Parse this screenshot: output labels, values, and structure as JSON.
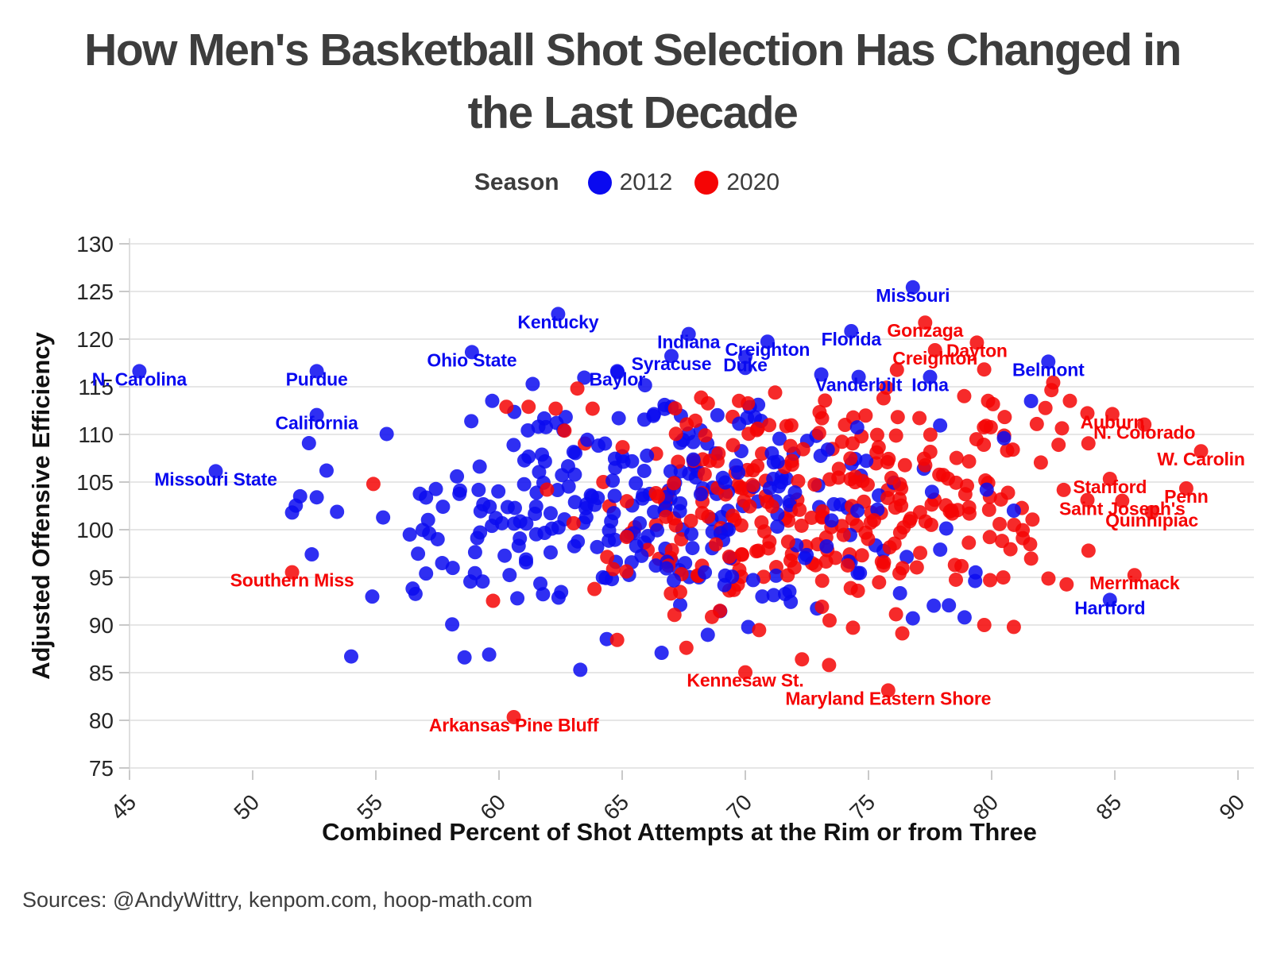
{
  "title": {
    "line1": "How Men's Basketball Shot Selection Has Changed in",
    "line2": "the Last Decade"
  },
  "legend": {
    "title": "Season",
    "items": [
      {
        "label": "2012",
        "color": "#0a0af0"
      },
      {
        "label": "2020",
        "color": "#f50505"
      }
    ]
  },
  "footer": {
    "sources": "Sources: @AndyWittry, kenpom.com, hoop-math.com"
  },
  "chart_data": {
    "type": "scatter",
    "title": "How Men's Basketball Shot Selection Has Changed in the Last Decade",
    "xlabel": "Combined Percent of Shot Attempts at the Rim or from Three",
    "ylabel": "Adjusted Offensive Efficiency",
    "xlim": [
      44.5,
      90.7
    ],
    "ylim": [
      74.75,
      130.6
    ],
    "x_ticks": [
      45,
      50,
      55,
      60,
      65,
      70,
      75,
      80,
      85,
      90
    ],
    "y_ticks": [
      75,
      80,
      85,
      90,
      95,
      100,
      105,
      110,
      115,
      120,
      125,
      130
    ],
    "grid": "horizontal-only",
    "legend_position": "top-center",
    "point_alpha": 0.85,
    "point_radius_px": 9,
    "series": [
      {
        "name": "2012",
        "color": "#0a0af0",
        "cloud": {
          "count": 300,
          "seed": 20120,
          "x_center": 66.4,
          "x_spread": 5.4,
          "y_center": 103.2,
          "y_spread": 6.3,
          "x_min": 51.5,
          "x_max": 83.5,
          "y_min": 86.3,
          "y_max": 117.2
        },
        "outlier_points": [
          [
            51.6,
            101.8
          ],
          [
            52.6,
            103.4
          ],
          [
            54.0,
            86.7
          ],
          [
            58.6,
            86.6
          ],
          [
            59.6,
            86.9
          ],
          [
            63.3,
            85.3
          ],
          [
            76.8,
            90.7
          ],
          [
            78.9,
            90.8
          ],
          [
            80.5,
            109.6
          ],
          [
            81.6,
            113.5
          ],
          [
            79.8,
            104.2
          ],
          [
            80.9,
            102.0
          ]
        ]
      },
      {
        "name": "2020",
        "color": "#f50505",
        "cloud": {
          "count": 300,
          "seed": 20200,
          "x_center": 73.4,
          "x_spread": 5.2,
          "y_center": 102.8,
          "y_spread": 6.3,
          "x_min": 55.5,
          "x_max": 84.5,
          "y_min": 87.0,
          "y_max": 117.4
        },
        "outlier_points": [
          [
            54.9,
            104.8
          ],
          [
            60.3,
            112.9
          ],
          [
            61.2,
            112.9
          ],
          [
            62.3,
            112.7
          ],
          [
            63.8,
            112.7
          ],
          [
            72.3,
            86.4
          ],
          [
            73.4,
            85.8
          ],
          [
            79.7,
            90.0
          ],
          [
            80.9,
            89.8
          ]
        ]
      }
    ],
    "labeled_points": [
      {
        "team": "N. Carolina",
        "season": "2012",
        "x": 45.4,
        "y": 115.8
      },
      {
        "team": "Purdue",
        "season": "2012",
        "x": 52.6,
        "y": 115.8
      },
      {
        "team": "California",
        "season": "2012",
        "x": 52.6,
        "y": 111.2
      },
      {
        "team": "Missouri State",
        "season": "2012",
        "x": 48.5,
        "y": 105.3
      },
      {
        "team": "Ohio State",
        "season": "2012",
        "x": 58.9,
        "y": 117.8
      },
      {
        "team": "Kentucky",
        "season": "2012",
        "x": 62.4,
        "y": 121.8
      },
      {
        "team": "Baylor",
        "season": "2012",
        "x": 64.8,
        "y": 115.8
      },
      {
        "team": "Syracuse",
        "season": "2012",
        "x": 67.0,
        "y": 117.4
      },
      {
        "team": "Indiana",
        "season": "2012",
        "x": 67.7,
        "y": 119.7
      },
      {
        "team": "Duke",
        "season": "2012",
        "x": 70.0,
        "y": 117.3
      },
      {
        "team": "Creighton",
        "season": "2012",
        "x": 70.9,
        "y": 118.9
      },
      {
        "team": "Florida",
        "season": "2012",
        "x": 74.3,
        "y": 120.0
      },
      {
        "team": "Vanderbilt",
        "season": "2012",
        "x": 74.6,
        "y": 115.2
      },
      {
        "team": "Missouri",
        "season": "2012",
        "x": 76.8,
        "y": 124.6
      },
      {
        "team": "Iona",
        "season": "2012",
        "x": 77.5,
        "y": 115.2
      },
      {
        "team": "Belmont",
        "season": "2012",
        "x": 82.3,
        "y": 116.8
      },
      {
        "team": "Hartford",
        "season": "2012",
        "x": 84.8,
        "y": 91.8
      },
      {
        "team": "Southern Miss",
        "season": "2020",
        "x": 51.6,
        "y": 94.7
      },
      {
        "team": "Gonzaga",
        "season": "2020",
        "x": 77.3,
        "y": 120.9
      },
      {
        "team": "Creighton",
        "season": "2020",
        "x": 77.7,
        "y": 118.0
      },
      {
        "team": "Dayton",
        "season": "2020",
        "x": 79.4,
        "y": 118.8
      },
      {
        "team": "Auburn",
        "season": "2020",
        "x": 84.9,
        "y": 111.3
      },
      {
        "team": "N. Colorado",
        "season": "2020",
        "x": 86.2,
        "y": 110.2
      },
      {
        "team": "W. Carolin",
        "season": "2020",
        "x": 88.5,
        "y": 107.4
      },
      {
        "team": "Stanford",
        "season": "2020",
        "x": 84.8,
        "y": 104.5
      },
      {
        "team": "Penn",
        "season": "2020",
        "x": 87.9,
        "y": 103.5
      },
      {
        "team": "Saint Joseph's",
        "season": "2020",
        "x": 85.3,
        "y": 102.2
      },
      {
        "team": "Quinnipiac",
        "season": "2020",
        "x": 86.5,
        "y": 101.0
      },
      {
        "team": "Merrimack",
        "season": "2020",
        "x": 85.8,
        "y": 94.4
      },
      {
        "team": "Kennesaw St.",
        "season": "2020",
        "x": 70.0,
        "y": 84.2
      },
      {
        "team": "Maryland Eastern Shore",
        "season": "2020",
        "x": 75.8,
        "y": 82.3
      },
      {
        "team": "Arkansas Pine Bluff",
        "season": "2020",
        "x": 60.6,
        "y": 79.5
      }
    ]
  }
}
